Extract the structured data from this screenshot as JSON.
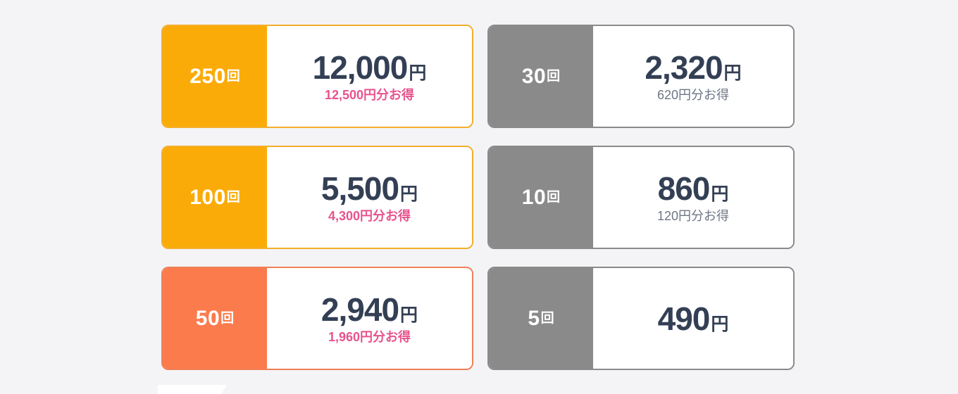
{
  "colors": {
    "background": "#f4f4f7",
    "orange_label": "#fbab08",
    "coral_label": "#fb7b4d",
    "gray_label": "#8a8a8a",
    "price_text": "#333f54",
    "discount_pink": "#e8538d",
    "discount_slate": "#6e7686",
    "card_background": "#ffffff"
  },
  "cards": [
    {
      "count": "250",
      "unit": "回",
      "price": "12,000",
      "currency": "円",
      "discount": "12,500円分お得",
      "theme": "orange"
    },
    {
      "count": "100",
      "unit": "回",
      "price": "5,500",
      "currency": "円",
      "discount": "4,300円分お得",
      "theme": "orange"
    },
    {
      "count": "50",
      "unit": "回",
      "price": "2,940",
      "currency": "円",
      "discount": "1,960円分お得",
      "theme": "coral"
    },
    {
      "count": "30",
      "unit": "回",
      "price": "2,320",
      "currency": "円",
      "discount": "620円分お得",
      "theme": "gray"
    },
    {
      "count": "10",
      "unit": "回",
      "price": "860",
      "currency": "円",
      "discount": "120円分お得",
      "theme": "gray"
    },
    {
      "count": "5",
      "unit": "回",
      "price": "490",
      "currency": "円",
      "discount": "",
      "theme": "gray"
    }
  ]
}
